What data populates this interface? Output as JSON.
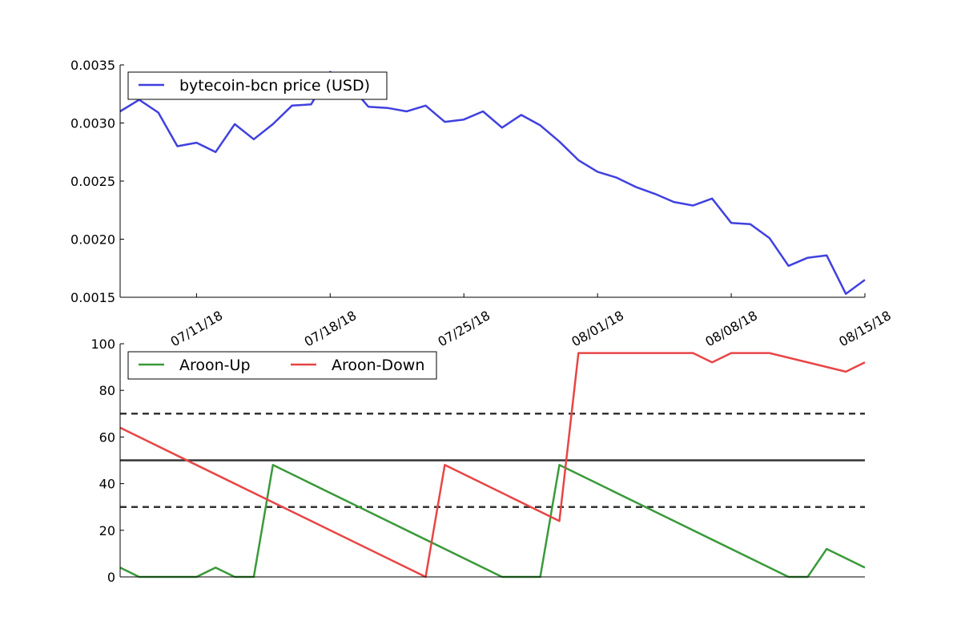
{
  "colors": {
    "price": "#4040e0",
    "aroon_up": "#3a9a3a",
    "aroon_down": "#e84545",
    "reference_lines": "#333333"
  },
  "chart_data": [
    {
      "type": "line",
      "x_axis": "date",
      "x_ticks": [
        "07/11/18",
        "07/18/18",
        "07/25/18",
        "08/01/18",
        "08/08/18",
        "08/15/18"
      ],
      "ylim": [
        0.0015,
        0.0035
      ],
      "y_ticks": [
        "0.0015",
        "0.0020",
        "0.0025",
        "0.0030",
        "0.0035"
      ],
      "legend_placement": "top-left",
      "grid": false,
      "series": [
        {
          "name": "bytecoin-bcn price (USD)",
          "x": [
            "2018-07-07",
            "2018-07-08",
            "2018-07-09",
            "2018-07-10",
            "2018-07-11",
            "2018-07-12",
            "2018-07-13",
            "2018-07-14",
            "2018-07-15",
            "2018-07-16",
            "2018-07-17",
            "2018-07-18",
            "2018-07-19",
            "2018-07-20",
            "2018-07-21",
            "2018-07-22",
            "2018-07-23",
            "2018-07-24",
            "2018-07-25",
            "2018-07-26",
            "2018-07-27",
            "2018-07-28",
            "2018-07-29",
            "2018-07-30",
            "2018-07-31",
            "2018-08-01",
            "2018-08-02",
            "2018-08-03",
            "2018-08-04",
            "2018-08-05",
            "2018-08-06",
            "2018-08-07",
            "2018-08-08",
            "2018-08-09",
            "2018-08-10",
            "2018-08-11",
            "2018-08-12",
            "2018-08-13",
            "2018-08-14",
            "2018-08-15"
          ],
          "values": [
            0.0031,
            0.0032,
            0.00309,
            0.0028,
            0.00283,
            0.00275,
            0.00299,
            0.00286,
            0.00299,
            0.00315,
            0.00316,
            0.00344,
            0.00333,
            0.00314,
            0.00313,
            0.0031,
            0.00315,
            0.00301,
            0.00303,
            0.0031,
            0.00296,
            0.00307,
            0.00298,
            0.00284,
            0.00268,
            0.00258,
            0.00253,
            0.00245,
            0.00239,
            0.00232,
            0.00229,
            0.00235,
            0.00214,
            0.00213,
            0.00201,
            0.00177,
            0.00184,
            0.00186,
            0.00153,
            0.00165
          ]
        }
      ]
    },
    {
      "type": "line",
      "x_axis": "date",
      "ylim": [
        0,
        100
      ],
      "y_ticks": [
        "0",
        "20",
        "40",
        "60",
        "80",
        "100"
      ],
      "legend_placement": "top-left",
      "grid": false,
      "reference_lines": [
        {
          "y": 70,
          "style": "dashed"
        },
        {
          "y": 50,
          "style": "solid"
        },
        {
          "y": 30,
          "style": "dashed"
        }
      ],
      "series": [
        {
          "name": "Aroon-Up",
          "x": [
            "2018-07-07",
            "2018-07-08",
            "2018-07-11",
            "2018-07-12",
            "2018-07-13",
            "2018-07-14",
            "2018-07-15",
            "2018-07-27",
            "2018-07-28",
            "2018-07-29",
            "2018-07-30",
            "2018-08-11",
            "2018-08-12",
            "2018-08-13",
            "2018-08-15"
          ],
          "values": [
            4,
            0,
            0,
            4,
            0,
            0,
            48,
            0,
            0,
            0,
            48,
            0,
            0,
            12,
            4
          ]
        },
        {
          "name": "Aroon-Down",
          "x": [
            "2018-07-07",
            "2018-07-23",
            "2018-07-24",
            "2018-07-30",
            "2018-07-31",
            "2018-08-06",
            "2018-08-07",
            "2018-08-08",
            "2018-08-10",
            "2018-08-14",
            "2018-08-15"
          ],
          "values": [
            64,
            0,
            48,
            24,
            96,
            96,
            92,
            96,
            96,
            88,
            92
          ]
        }
      ]
    }
  ]
}
